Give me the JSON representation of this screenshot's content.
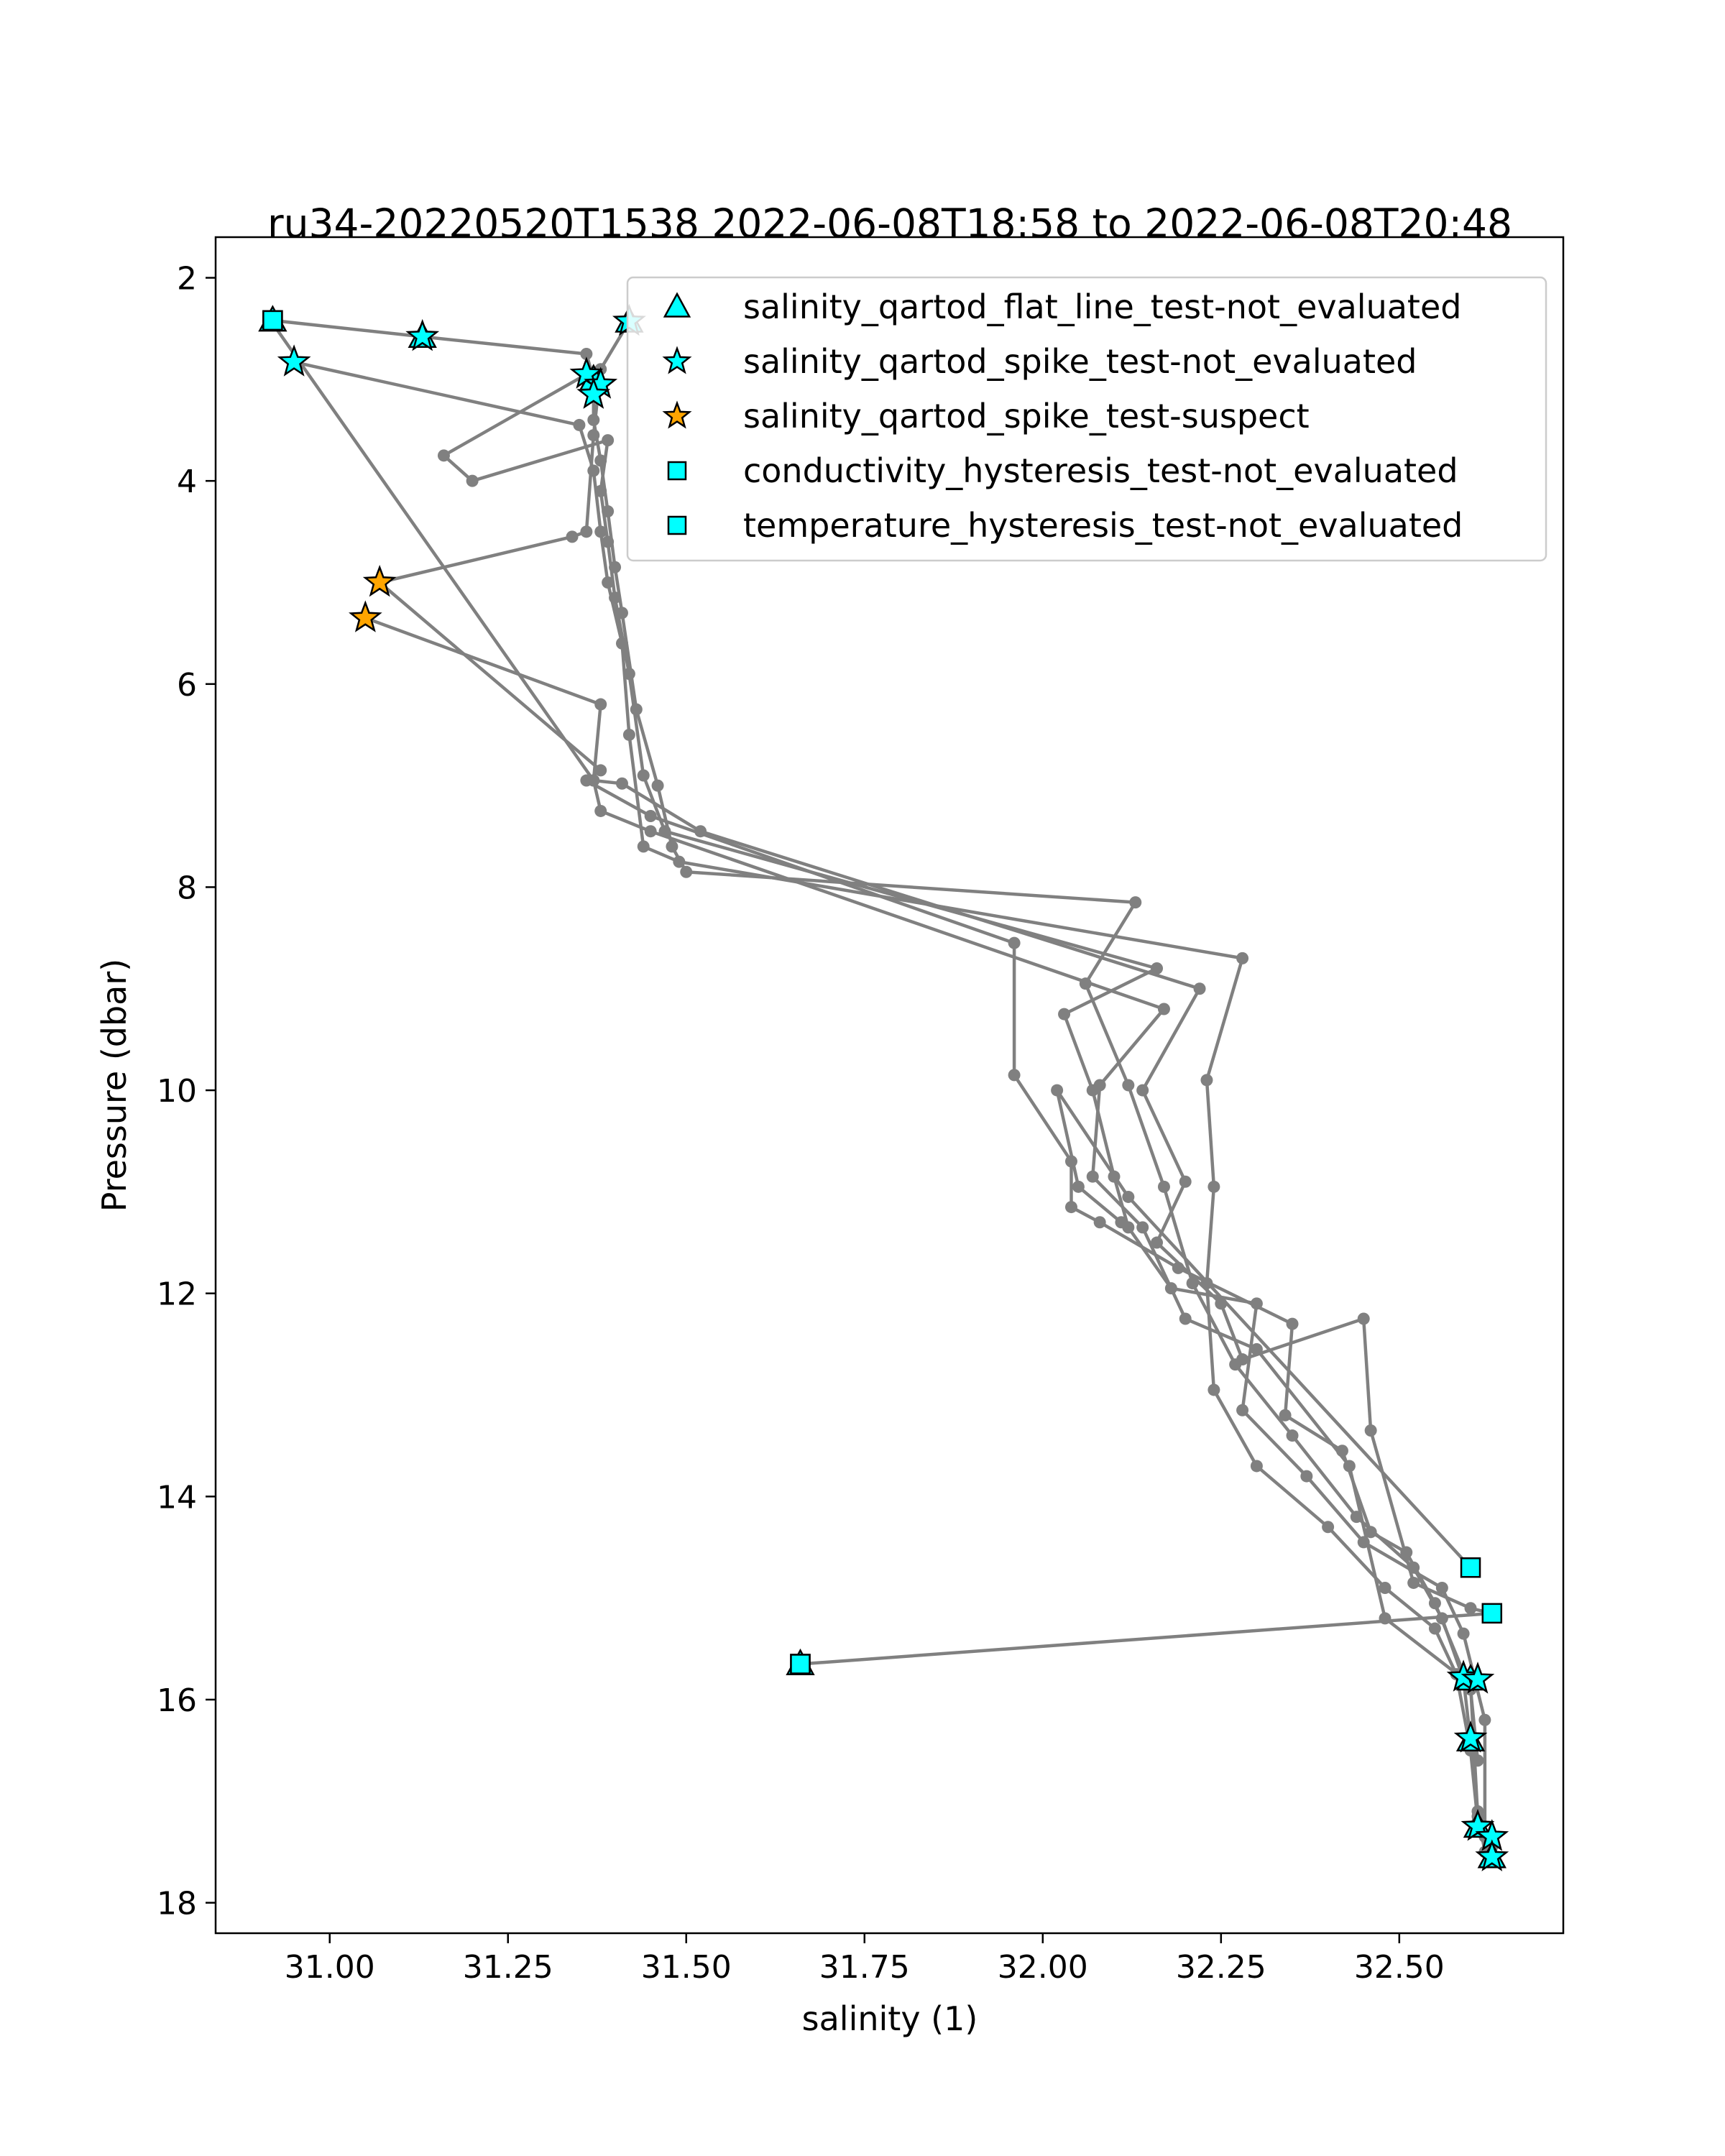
{
  "chart_data": {
    "type": "scatter",
    "title": "ru34-20220520T1538 2022-06-08T18:58 to 2022-06-08T20:48",
    "xlabel": "salinity (1)",
    "ylabel": "Pressure (dbar)",
    "xlim": [
      30.84,
      32.73
    ],
    "ylim": [
      18.3,
      1.6
    ],
    "y_inverted": true,
    "grid": false,
    "legend_position": "top-right",
    "x_ticks": [
      "31.00",
      "31.25",
      "31.50",
      "31.75",
      "32.00",
      "32.25",
      "32.50"
    ],
    "x_tick_values": [
      31.0,
      31.25,
      31.5,
      31.75,
      32.0,
      32.25,
      32.5
    ],
    "y_ticks": [
      "2",
      "4",
      "6",
      "8",
      "10",
      "12",
      "14",
      "16",
      "18"
    ],
    "y_tick_values": [
      2,
      4,
      6,
      8,
      10,
      12,
      14,
      16,
      18
    ],
    "profile_color": "#808080",
    "profiles": [
      [
        [
          30.92,
          2.42
        ],
        [
          31.13,
          2.58
        ],
        [
          31.36,
          2.75
        ],
        [
          31.37,
          3.0
        ],
        [
          31.37,
          3.4
        ],
        [
          31.38,
          3.8
        ],
        [
          31.39,
          4.3
        ],
        [
          31.4,
          4.85
        ],
        [
          31.41,
          5.3
        ],
        [
          31.43,
          6.25
        ],
        [
          31.46,
          7.0
        ],
        [
          31.48,
          7.6
        ],
        [
          31.5,
          7.85
        ],
        [
          32.13,
          8.15
        ],
        [
          32.06,
          8.95
        ],
        [
          32.12,
          9.95
        ],
        [
          32.17,
          10.95
        ],
        [
          32.21,
          11.9
        ],
        [
          32.27,
          12.7
        ],
        [
          32.35,
          13.4
        ],
        [
          32.44,
          14.2
        ],
        [
          32.52,
          14.7
        ],
        [
          32.56,
          15.2
        ],
        [
          32.59,
          15.8
        ],
        [
          32.6,
          16.4
        ],
        [
          32.61,
          17.1
        ],
        [
          32.62,
          17.5
        ]
      ],
      [
        [
          30.95,
          2.83
        ],
        [
          31.35,
          3.45
        ],
        [
          31.37,
          3.9
        ],
        [
          31.38,
          4.5
        ],
        [
          31.39,
          5.0
        ],
        [
          31.41,
          5.6
        ],
        [
          31.42,
          6.5
        ],
        [
          31.44,
          7.6
        ],
        [
          31.49,
          7.75
        ],
        [
          32.28,
          8.7
        ],
        [
          32.23,
          9.9
        ],
        [
          32.24,
          10.95
        ],
        [
          32.23,
          11.9
        ],
        [
          32.24,
          12.95
        ],
        [
          32.3,
          13.7
        ],
        [
          32.4,
          14.3
        ],
        [
          32.48,
          14.9
        ],
        [
          32.55,
          15.3
        ],
        [
          32.58,
          15.75
        ],
        [
          32.6,
          16.5
        ],
        [
          32.61,
          17.2
        ],
        [
          32.63,
          17.55
        ]
      ],
      [
        [
          31.36,
          2.95
        ],
        [
          31.16,
          3.75
        ],
        [
          31.2,
          4.0
        ],
        [
          31.39,
          3.6
        ],
        [
          31.38,
          4.1
        ],
        [
          31.39,
          4.6
        ],
        [
          31.4,
          5.15
        ],
        [
          31.42,
          5.9
        ],
        [
          31.44,
          6.9
        ],
        [
          31.47,
          7.45
        ],
        [
          32.16,
          8.8
        ],
        [
          32.03,
          9.25
        ],
        [
          32.07,
          10.0
        ],
        [
          32.1,
          10.85
        ],
        [
          32.12,
          11.35
        ],
        [
          32.18,
          11.95
        ],
        [
          32.3,
          12.1
        ],
        [
          32.28,
          13.15
        ],
        [
          32.37,
          13.8
        ],
        [
          32.45,
          14.45
        ],
        [
          32.56,
          14.9
        ],
        [
          32.59,
          15.35
        ],
        [
          32.62,
          16.2
        ],
        [
          32.62,
          17.35
        ]
      ],
      [
        [
          31.42,
          2.43
        ],
        [
          31.38,
          2.9
        ],
        [
          31.37,
          3.55
        ],
        [
          31.36,
          4.5
        ],
        [
          31.34,
          4.55
        ],
        [
          31.07,
          5.0
        ],
        [
          31.38,
          6.85
        ],
        [
          31.36,
          6.95
        ],
        [
          31.45,
          7.3
        ],
        [
          31.96,
          8.55
        ],
        [
          31.96,
          9.85
        ],
        [
          32.04,
          10.7
        ],
        [
          32.04,
          11.15
        ],
        [
          32.08,
          11.3
        ],
        [
          32.19,
          11.75
        ],
        [
          32.35,
          12.3
        ],
        [
          32.34,
          13.2
        ],
        [
          32.42,
          13.55
        ],
        [
          32.46,
          14.35
        ],
        [
          32.51,
          14.55
        ],
        [
          32.55,
          15.05
        ],
        [
          32.6,
          15.9
        ],
        [
          32.61,
          16.6
        ]
      ],
      [
        [
          31.05,
          5.35
        ],
        [
          31.38,
          6.2
        ],
        [
          31.37,
          6.95
        ],
        [
          31.41,
          6.98
        ],
        [
          31.52,
          7.45
        ],
        [
          32.22,
          9.0
        ],
        [
          32.14,
          10.0
        ],
        [
          32.2,
          10.9
        ],
        [
          32.16,
          11.5
        ],
        [
          32.25,
          12.1
        ],
        [
          32.28,
          12.65
        ],
        [
          32.45,
          12.25
        ],
        [
          32.46,
          13.35
        ],
        [
          32.52,
          14.85
        ],
        [
          32.6,
          15.1
        ],
        [
          32.63,
          15.15
        ]
      ],
      [
        [
          30.92,
          2.45
        ],
        [
          31.37,
          6.95
        ],
        [
          31.38,
          7.25
        ],
        [
          31.45,
          7.45
        ],
        [
          32.17,
          9.2
        ],
        [
          32.08,
          9.95
        ],
        [
          32.07,
          10.85
        ],
        [
          32.14,
          11.35
        ],
        [
          32.2,
          12.25
        ],
        [
          32.3,
          12.55
        ],
        [
          32.43,
          13.7
        ],
        [
          32.48,
          15.2
        ],
        [
          32.6,
          15.85
        ],
        [
          32.61,
          17.15
        ],
        [
          32.63,
          17.45
        ]
      ],
      [
        [
          31.66,
          15.65
        ],
        [
          32.63,
          15.15
        ]
      ],
      [
        [
          32.6,
          14.7
        ],
        [
          32.12,
          11.05
        ],
        [
          32.02,
          10.0
        ],
        [
          32.05,
          10.95
        ],
        [
          32.11,
          11.3
        ]
      ]
    ],
    "series": [
      {
        "name": "salinity_qartod_flat_line_test-not_evaluated",
        "marker": "triangle",
        "color": "#00FFFF",
        "points": [
          [
            30.92,
            2.42
          ],
          [
            31.13,
            2.58
          ],
          [
            31.42,
            2.43
          ],
          [
            31.37,
            3.0
          ],
          [
            32.6,
            15.8
          ],
          [
            32.6,
            16.4
          ],
          [
            32.61,
            17.25
          ],
          [
            32.63,
            17.55
          ],
          [
            31.66,
            15.65
          ]
        ]
      },
      {
        "name": "salinity_qartod_spike_test-not_evaluated",
        "marker": "star",
        "color": "#00FFFF",
        "points": [
          [
            31.13,
            2.58
          ],
          [
            30.95,
            2.83
          ],
          [
            31.42,
            2.43
          ],
          [
            31.36,
            2.95
          ],
          [
            31.38,
            3.05
          ],
          [
            31.37,
            3.15
          ],
          [
            32.59,
            15.78
          ],
          [
            32.61,
            15.8
          ],
          [
            32.6,
            16.38
          ],
          [
            32.61,
            17.25
          ],
          [
            32.63,
            17.35
          ],
          [
            32.63,
            17.55
          ]
        ]
      },
      {
        "name": "salinity_qartod_spike_test-suspect",
        "marker": "star",
        "color": "#FFA500",
        "points": [
          [
            31.07,
            5.0
          ],
          [
            31.05,
            5.35
          ]
        ]
      },
      {
        "name": "conductivity_hysteresis_test-not_evaluated",
        "marker": "square",
        "color": "#00FFFF",
        "points": [
          [
            30.92,
            2.42
          ],
          [
            32.6,
            14.7
          ],
          [
            32.63,
            15.15
          ],
          [
            31.66,
            15.65
          ]
        ]
      },
      {
        "name": "temperature_hysteresis_test-not_evaluated",
        "marker": "square",
        "color": "#00FFFF",
        "points": [
          [
            30.92,
            2.42
          ],
          [
            31.66,
            15.65
          ]
        ]
      }
    ]
  }
}
